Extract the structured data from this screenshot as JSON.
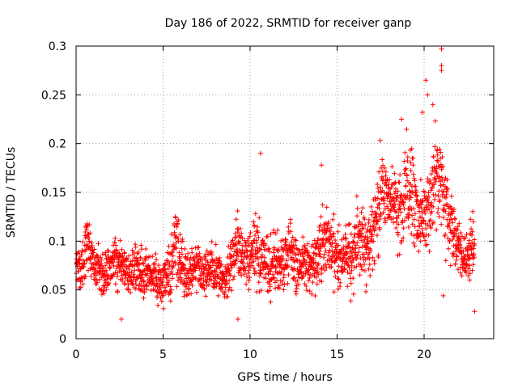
{
  "chart_data": {
    "type": "scatter",
    "title": "Day 186 of 2022, SRMTID for receiver ganp",
    "xlabel": "GPS time / hours",
    "ylabel": "SRMTID / TECUs",
    "xlim": [
      0,
      24
    ],
    "ylim": [
      0,
      0.3
    ],
    "x_ticks": [
      0,
      5,
      10,
      15,
      20
    ],
    "x_tick_labels": [
      "0",
      "5",
      "10",
      "15",
      "20"
    ],
    "y_ticks": [
      0,
      0.05,
      0.1,
      0.15,
      0.2,
      0.25,
      0.3
    ],
    "y_tick_labels": [
      "0",
      "0.05",
      "0.1",
      "0.15",
      "0.2",
      "0.25",
      "0.3"
    ],
    "grid": true,
    "marker": "+",
    "color": "#ff0000",
    "x_range_of_points": [
      0,
      22.9
    ],
    "series": [
      {
        "name": "SRMTID",
        "x": [
          0.0,
          0.1,
          0.2,
          0.3,
          0.4,
          0.5,
          0.6,
          0.7,
          0.8,
          0.9,
          1.0,
          1.2,
          1.4,
          1.6,
          1.8,
          2.0,
          2.2,
          2.4,
          2.6,
          2.8,
          3.0,
          3.2,
          3.4,
          3.6,
          3.8,
          4.0,
          4.2,
          4.4,
          4.6,
          4.8,
          5.0,
          5.2,
          5.4,
          5.6,
          5.8,
          6.0,
          6.2,
          6.4,
          6.6,
          6.8,
          7.0,
          7.2,
          7.4,
          7.6,
          7.8,
          8.0,
          8.2,
          8.4,
          8.6,
          8.8,
          9.0,
          9.2,
          9.4,
          9.6,
          9.8,
          10.0,
          10.2,
          10.4,
          10.6,
          10.8,
          11.0,
          11.2,
          11.4,
          11.6,
          11.8,
          12.0,
          12.2,
          12.4,
          12.6,
          12.8,
          13.0,
          13.2,
          13.4,
          13.6,
          13.8,
          14.0,
          14.2,
          14.4,
          14.6,
          14.8,
          15.0,
          15.2,
          15.4,
          15.6,
          15.8,
          16.0,
          16.2,
          16.4,
          16.6,
          16.8,
          17.0,
          17.2,
          17.4,
          17.6,
          17.8,
          18.0,
          18.2,
          18.4,
          18.6,
          18.8,
          19.0,
          19.2,
          19.4,
          19.6,
          19.8,
          20.0,
          20.2,
          20.4,
          20.6,
          20.8,
          21.0,
          21.2,
          21.4,
          21.6,
          21.8,
          22.0,
          22.2,
          22.4,
          22.6,
          22.8
        ],
        "center": [
          0.08,
          0.075,
          0.07,
          0.072,
          0.08,
          0.09,
          0.1,
          0.1,
          0.095,
          0.08,
          0.075,
          0.075,
          0.07,
          0.065,
          0.07,
          0.075,
          0.08,
          0.08,
          0.075,
          0.07,
          0.065,
          0.07,
          0.075,
          0.07,
          0.065,
          0.07,
          0.07,
          0.065,
          0.06,
          0.06,
          0.06,
          0.065,
          0.07,
          0.09,
          0.1,
          0.08,
          0.07,
          0.065,
          0.07,
          0.075,
          0.075,
          0.07,
          0.065,
          0.07,
          0.075,
          0.07,
          0.065,
          0.06,
          0.065,
          0.07,
          0.08,
          0.09,
          0.09,
          0.085,
          0.08,
          0.08,
          0.085,
          0.09,
          0.085,
          0.08,
          0.075,
          0.08,
          0.08,
          0.075,
          0.07,
          0.08,
          0.085,
          0.09,
          0.08,
          0.075,
          0.08,
          0.085,
          0.08,
          0.075,
          0.08,
          0.09,
          0.095,
          0.1,
          0.095,
          0.09,
          0.085,
          0.08,
          0.08,
          0.085,
          0.09,
          0.1,
          0.11,
          0.11,
          0.1,
          0.095,
          0.1,
          0.12,
          0.14,
          0.15,
          0.15,
          0.145,
          0.14,
          0.13,
          0.13,
          0.14,
          0.15,
          0.15,
          0.14,
          0.13,
          0.12,
          0.12,
          0.13,
          0.14,
          0.16,
          0.17,
          0.16,
          0.14,
          0.12,
          0.11,
          0.1,
          0.09,
          0.085,
          0.085,
          0.09,
          0.09
        ],
        "spread": [
          0.02,
          0.02,
          0.025,
          0.03,
          0.025,
          0.02,
          0.025,
          0.025,
          0.02,
          0.02,
          0.02,
          0.02,
          0.02,
          0.02,
          0.02,
          0.02,
          0.02,
          0.02,
          0.02,
          0.02,
          0.02,
          0.02,
          0.02,
          0.02,
          0.02,
          0.02,
          0.02,
          0.02,
          0.02,
          0.02,
          0.02,
          0.02,
          0.025,
          0.035,
          0.04,
          0.025,
          0.025,
          0.02,
          0.02,
          0.02,
          0.02,
          0.02,
          0.02,
          0.02,
          0.02,
          0.02,
          0.02,
          0.02,
          0.02,
          0.025,
          0.025,
          0.03,
          0.03,
          0.025,
          0.025,
          0.025,
          0.03,
          0.035,
          0.03,
          0.025,
          0.025,
          0.025,
          0.03,
          0.025,
          0.02,
          0.025,
          0.03,
          0.03,
          0.025,
          0.025,
          0.025,
          0.03,
          0.025,
          0.025,
          0.025,
          0.03,
          0.035,
          0.035,
          0.03,
          0.03,
          0.03,
          0.025,
          0.025,
          0.03,
          0.035,
          0.035,
          0.04,
          0.04,
          0.035,
          0.03,
          0.035,
          0.04,
          0.04,
          0.04,
          0.04,
          0.035,
          0.035,
          0.03,
          0.035,
          0.04,
          0.04,
          0.04,
          0.035,
          0.03,
          0.03,
          0.03,
          0.035,
          0.04,
          0.05,
          0.05,
          0.045,
          0.04,
          0.03,
          0.025,
          0.025,
          0.025,
          0.02,
          0.02,
          0.025,
          0.025
        ]
      }
    ],
    "notable_points": [
      {
        "x": 10.6,
        "y": 0.19
      },
      {
        "x": 14.1,
        "y": 0.178
      },
      {
        "x": 20.1,
        "y": 0.265
      },
      {
        "x": 20.2,
        "y": 0.25
      },
      {
        "x": 21.0,
        "y": 0.297
      },
      {
        "x": 21.0,
        "y": 0.28
      },
      {
        "x": 21.0,
        "y": 0.275
      },
      {
        "x": 20.5,
        "y": 0.24
      },
      {
        "x": 19.9,
        "y": 0.232
      },
      {
        "x": 18.7,
        "y": 0.225
      },
      {
        "x": 21.1,
        "y": 0.044
      },
      {
        "x": 2.6,
        "y": 0.02
      },
      {
        "x": 9.3,
        "y": 0.02
      },
      {
        "x": 22.9,
        "y": 0.028
      }
    ]
  }
}
